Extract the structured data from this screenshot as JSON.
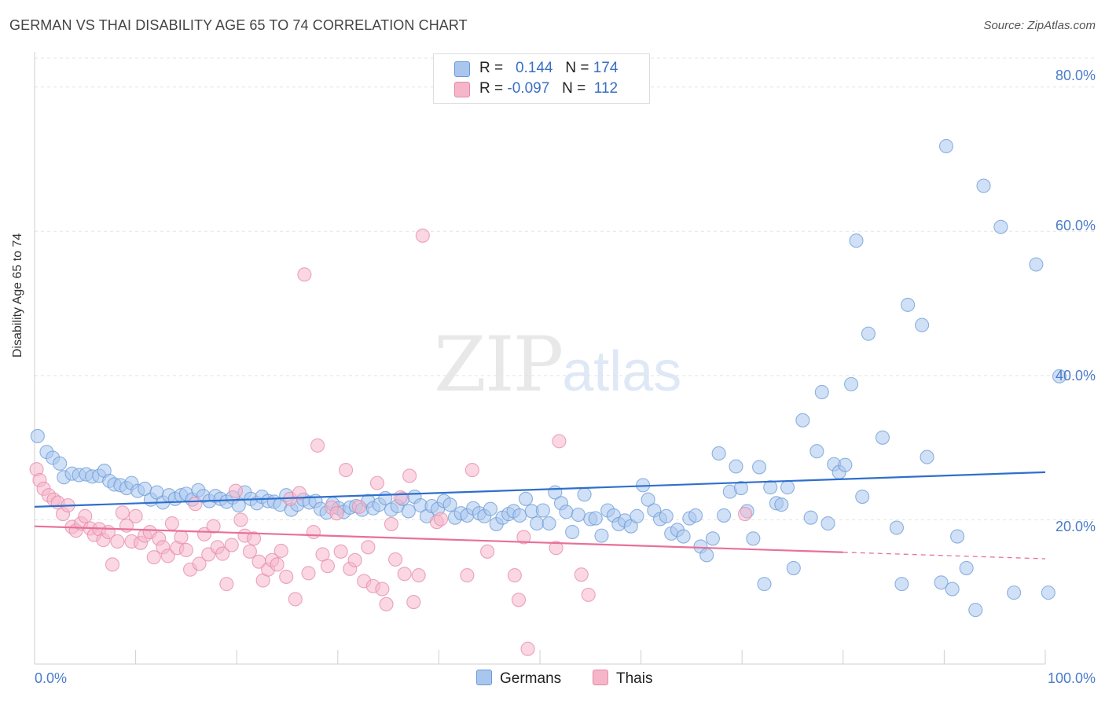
{
  "header": {
    "title": "GERMAN VS THAI DISABILITY AGE 65 TO 74 CORRELATION CHART",
    "source": "Source: ZipAtlas.com"
  },
  "legend": {
    "series": [
      {
        "name": "Germans",
        "r_label": "R =",
        "r_value": "0.144",
        "n_label": "N =",
        "n_value": "174",
        "color": "#a9c6ee",
        "stroke": "#6b9bd6"
      },
      {
        "name": "Thais",
        "r_label": "R =",
        "r_value": "-0.097",
        "n_label": "N =",
        "n_value": "112",
        "color": "#f5b6ca",
        "stroke": "#e48aa8"
      }
    ]
  },
  "watermark": {
    "zip": "ZIP",
    "atlas": "atlas"
  },
  "chart_data": {
    "type": "scatter",
    "title": "GERMAN VS THAI DISABILITY AGE 65 TO 74 CORRELATION CHART",
    "ylabel": "Disability Age 65 to 74",
    "xlabel": "",
    "x_tick_labels": [
      "0.0%",
      "100.0%"
    ],
    "y_tick_labels": [
      "20.0%",
      "40.0%",
      "60.0%",
      "80.0%"
    ],
    "y_ticks": [
      20,
      40,
      60,
      80
    ],
    "xlim": [
      0,
      100
    ],
    "ylim": [
      0,
      84
    ],
    "grid": true,
    "legend_position": "top-center",
    "series": [
      {
        "name": "Germans",
        "color": "#6b9bd6",
        "trend": {
          "x": [
            0,
            100
          ],
          "y": [
            21.8,
            26.6
          ]
        },
        "points": [
          [
            0.3,
            31.6
          ],
          [
            1.2,
            29.4
          ],
          [
            1.8,
            28.6
          ],
          [
            2.5,
            27.8
          ],
          [
            2.9,
            25.9
          ],
          [
            3.7,
            26.4
          ],
          [
            4.4,
            26.2
          ],
          [
            5.1,
            26.3
          ],
          [
            5.7,
            26.0
          ],
          [
            6.4,
            26.1
          ],
          [
            6.9,
            26.8
          ],
          [
            7.4,
            25.4
          ],
          [
            7.9,
            24.9
          ],
          [
            8.5,
            24.8
          ],
          [
            9.1,
            24.4
          ],
          [
            9.6,
            25.1
          ],
          [
            10.2,
            24.0
          ],
          [
            10.9,
            24.3
          ],
          [
            11.5,
            22.8
          ],
          [
            12.1,
            23.8
          ],
          [
            12.7,
            22.4
          ],
          [
            13.3,
            23.4
          ],
          [
            13.9,
            22.9
          ],
          [
            14.5,
            23.4
          ],
          [
            15.0,
            23.6
          ],
          [
            15.6,
            22.8
          ],
          [
            16.2,
            24.1
          ],
          [
            16.7,
            23.3
          ],
          [
            17.3,
            22.6
          ],
          [
            17.9,
            23.3
          ],
          [
            18.4,
            22.9
          ],
          [
            19.0,
            22.5
          ],
          [
            19.6,
            23.1
          ],
          [
            20.2,
            22.0
          ],
          [
            20.8,
            23.8
          ],
          [
            21.4,
            22.9
          ],
          [
            22.0,
            22.3
          ],
          [
            22.5,
            23.2
          ],
          [
            23.1,
            22.6
          ],
          [
            23.7,
            22.5
          ],
          [
            24.3,
            22.1
          ],
          [
            24.9,
            23.4
          ],
          [
            25.4,
            21.4
          ],
          [
            26.0,
            22.1
          ],
          [
            26.6,
            22.8
          ],
          [
            27.2,
            22.4
          ],
          [
            27.8,
            22.6
          ],
          [
            28.3,
            21.5
          ],
          [
            28.9,
            21.0
          ],
          [
            29.5,
            22.2
          ],
          [
            30.1,
            21.6
          ],
          [
            30.6,
            21.1
          ],
          [
            31.2,
            21.7
          ],
          [
            31.8,
            21.9
          ],
          [
            32.4,
            21.4
          ],
          [
            33.0,
            22.6
          ],
          [
            33.5,
            21.6
          ],
          [
            34.1,
            22.1
          ],
          [
            34.7,
            23.0
          ],
          [
            35.3,
            21.4
          ],
          [
            35.9,
            21.9
          ],
          [
            36.4,
            22.9
          ],
          [
            37.0,
            21.2
          ],
          [
            37.6,
            23.2
          ],
          [
            38.2,
            22.0
          ],
          [
            38.8,
            20.5
          ],
          [
            39.3,
            21.9
          ],
          [
            39.9,
            21.5
          ],
          [
            40.5,
            22.6
          ],
          [
            41.1,
            22.1
          ],
          [
            41.6,
            20.3
          ],
          [
            42.2,
            20.9
          ],
          [
            42.8,
            20.6
          ],
          [
            43.4,
            21.6
          ],
          [
            44.0,
            20.9
          ],
          [
            44.5,
            20.5
          ],
          [
            45.1,
            21.5
          ],
          [
            45.7,
            19.4
          ],
          [
            46.3,
            20.3
          ],
          [
            46.9,
            20.8
          ],
          [
            47.4,
            21.2
          ],
          [
            48.0,
            20.6
          ],
          [
            48.6,
            22.9
          ],
          [
            49.2,
            21.2
          ],
          [
            49.7,
            19.5
          ],
          [
            50.3,
            21.3
          ],
          [
            50.9,
            19.5
          ],
          [
            51.5,
            23.8
          ],
          [
            52.1,
            22.3
          ],
          [
            52.6,
            21.1
          ],
          [
            53.2,
            18.3
          ],
          [
            53.8,
            20.7
          ],
          [
            54.4,
            23.5
          ],
          [
            55.0,
            20.1
          ],
          [
            55.5,
            20.2
          ],
          [
            56.1,
            17.8
          ],
          [
            56.7,
            21.3
          ],
          [
            57.3,
            20.6
          ],
          [
            57.8,
            19.4
          ],
          [
            58.4,
            19.9
          ],
          [
            59.0,
            19.1
          ],
          [
            59.6,
            20.5
          ],
          [
            60.2,
            24.8
          ],
          [
            60.7,
            22.8
          ],
          [
            61.3,
            21.3
          ],
          [
            61.9,
            20.1
          ],
          [
            62.5,
            20.5
          ],
          [
            63.0,
            18.1
          ],
          [
            63.6,
            18.6
          ],
          [
            64.2,
            17.7
          ],
          [
            64.8,
            20.2
          ],
          [
            65.4,
            20.6
          ],
          [
            65.9,
            16.3
          ],
          [
            66.5,
            15.1
          ],
          [
            67.1,
            17.4
          ],
          [
            67.7,
            29.2
          ],
          [
            68.2,
            20.6
          ],
          [
            68.8,
            23.9
          ],
          [
            69.4,
            27.4
          ],
          [
            69.9,
            24.4
          ],
          [
            70.5,
            21.2
          ],
          [
            71.1,
            17.4
          ],
          [
            71.7,
            27.3
          ],
          [
            72.2,
            11.1
          ],
          [
            72.8,
            24.5
          ],
          [
            73.4,
            22.3
          ],
          [
            73.9,
            22.1
          ],
          [
            74.5,
            24.5
          ],
          [
            75.1,
            13.3
          ],
          [
            76.0,
            33.8
          ],
          [
            76.8,
            20.3
          ],
          [
            77.4,
            29.5
          ],
          [
            77.9,
            37.7
          ],
          [
            78.5,
            19.5
          ],
          [
            79.1,
            27.7
          ],
          [
            79.6,
            26.6
          ],
          [
            80.2,
            27.6
          ],
          [
            80.8,
            38.8
          ],
          [
            81.3,
            58.7
          ],
          [
            81.9,
            23.2
          ],
          [
            82.5,
            45.8
          ],
          [
            83.9,
            31.4
          ],
          [
            85.3,
            18.9
          ],
          [
            85.8,
            11.1
          ],
          [
            86.4,
            49.8
          ],
          [
            87.8,
            47.0
          ],
          [
            88.3,
            28.7
          ],
          [
            89.7,
            11.3
          ],
          [
            90.2,
            71.8
          ],
          [
            90.8,
            10.4
          ],
          [
            91.3,
            17.7
          ],
          [
            92.2,
            13.3
          ],
          [
            93.1,
            7.5
          ],
          [
            93.9,
            66.3
          ],
          [
            95.6,
            60.6
          ],
          [
            96.9,
            9.9
          ],
          [
            99.1,
            55.4
          ],
          [
            100.3,
            9.9
          ],
          [
            101.4,
            39.9
          ]
        ]
      },
      {
        "name": "Thais",
        "color": "#e48aa8",
        "trend": {
          "x": [
            0,
            80
          ],
          "y": [
            19.1,
            15.5
          ]
        },
        "trend_dashed": {
          "x": [
            80,
            100
          ],
          "y": [
            15.5,
            14.6
          ]
        },
        "points": [
          [
            0.2,
            27.0
          ],
          [
            0.5,
            25.5
          ],
          [
            0.9,
            24.3
          ],
          [
            1.4,
            23.4
          ],
          [
            1.9,
            22.8
          ],
          [
            2.3,
            22.4
          ],
          [
            2.8,
            20.8
          ],
          [
            3.3,
            22.0
          ],
          [
            3.7,
            19.0
          ],
          [
            4.1,
            18.5
          ],
          [
            4.6,
            19.5
          ],
          [
            5.0,
            20.5
          ],
          [
            5.5,
            18.8
          ],
          [
            5.9,
            17.9
          ],
          [
            6.4,
            18.7
          ],
          [
            6.8,
            17.2
          ],
          [
            7.3,
            18.3
          ],
          [
            7.7,
            13.8
          ],
          [
            8.2,
            17.0
          ],
          [
            8.7,
            21.0
          ],
          [
            9.1,
            19.2
          ],
          [
            9.6,
            17.0
          ],
          [
            10.0,
            20.5
          ],
          [
            10.5,
            16.8
          ],
          [
            10.9,
            17.8
          ],
          [
            11.4,
            18.3
          ],
          [
            11.8,
            14.8
          ],
          [
            12.3,
            17.4
          ],
          [
            12.7,
            16.2
          ],
          [
            13.2,
            15.0
          ],
          [
            13.6,
            19.5
          ],
          [
            14.1,
            16.1
          ],
          [
            14.5,
            17.6
          ],
          [
            15.0,
            15.8
          ],
          [
            15.4,
            13.1
          ],
          [
            15.9,
            22.2
          ],
          [
            16.3,
            13.9
          ],
          [
            16.8,
            18.0
          ],
          [
            17.2,
            15.2
          ],
          [
            17.7,
            19.1
          ],
          [
            18.1,
            16.2
          ],
          [
            18.6,
            15.3
          ],
          [
            19.0,
            11.1
          ],
          [
            19.5,
            16.5
          ],
          [
            19.9,
            24.0
          ],
          [
            20.4,
            20.0
          ],
          [
            20.8,
            17.8
          ],
          [
            21.3,
            15.6
          ],
          [
            21.7,
            17.4
          ],
          [
            22.2,
            14.2
          ],
          [
            22.6,
            11.6
          ],
          [
            23.1,
            13.1
          ],
          [
            23.5,
            14.4
          ],
          [
            24.0,
            13.8
          ],
          [
            24.4,
            15.7
          ],
          [
            24.9,
            12.1
          ],
          [
            25.3,
            22.9
          ],
          [
            25.8,
            9.0
          ],
          [
            26.2,
            23.7
          ],
          [
            26.7,
            54.0
          ],
          [
            27.1,
            12.6
          ],
          [
            27.6,
            18.3
          ],
          [
            28.0,
            30.3
          ],
          [
            28.5,
            15.2
          ],
          [
            29.0,
            13.6
          ],
          [
            29.4,
            21.7
          ],
          [
            29.9,
            20.9
          ],
          [
            30.3,
            15.6
          ],
          [
            30.8,
            26.9
          ],
          [
            31.2,
            13.2
          ],
          [
            31.7,
            14.4
          ],
          [
            32.1,
            21.8
          ],
          [
            32.6,
            11.5
          ],
          [
            33.0,
            16.2
          ],
          [
            33.5,
            10.8
          ],
          [
            33.9,
            25.1
          ],
          [
            34.4,
            10.4
          ],
          [
            34.8,
            8.3
          ],
          [
            35.3,
            19.4
          ],
          [
            35.7,
            14.5
          ],
          [
            36.2,
            23.1
          ],
          [
            36.6,
            12.5
          ],
          [
            37.1,
            26.1
          ],
          [
            37.5,
            8.6
          ],
          [
            38.0,
            12.3
          ],
          [
            38.4,
            59.4
          ],
          [
            39.8,
            19.7
          ],
          [
            40.2,
            20.1
          ],
          [
            42.8,
            12.3
          ],
          [
            43.3,
            26.9
          ],
          [
            44.8,
            15.6
          ],
          [
            47.5,
            12.3
          ],
          [
            47.9,
            8.9
          ],
          [
            48.4,
            17.6
          ],
          [
            48.8,
            2.1
          ],
          [
            51.6,
            16.1
          ],
          [
            51.9,
            30.9
          ],
          [
            54.1,
            12.4
          ],
          [
            54.8,
            9.6
          ],
          [
            70.3,
            20.8
          ]
        ]
      }
    ]
  }
}
